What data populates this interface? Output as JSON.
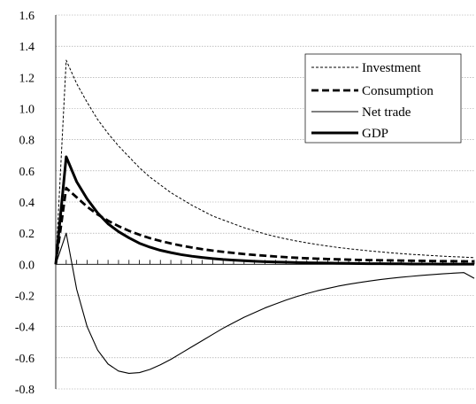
{
  "chart_data": {
    "type": "line",
    "title": "",
    "xlabel": "",
    "ylabel": "",
    "ylim": [
      -0.8,
      1.6
    ],
    "yticks": [
      "1.6",
      "1.4",
      "1.2",
      "1.0",
      "0.8",
      "0.6",
      "0.4",
      "0.2",
      "0.0",
      "-0.2",
      "-0.4",
      "-0.6",
      "-0.8"
    ],
    "x": [
      0,
      1,
      2,
      3,
      4,
      5,
      6,
      7,
      8,
      9,
      10,
      11,
      12,
      13,
      14,
      15,
      16,
      17,
      18,
      19,
      20,
      21,
      22,
      23,
      24,
      25,
      26,
      27,
      28,
      29,
      30,
      31,
      32,
      33,
      34,
      35,
      36,
      37,
      38,
      39,
      40
    ],
    "grid": "horizontal",
    "legend_position": "top-right",
    "series": [
      {
        "name": "Investment",
        "style": "dotted",
        "color": "#000000",
        "values": [
          0,
          1.31,
          1.16,
          1.04,
          0.93,
          0.84,
          0.76,
          0.69,
          0.62,
          0.56,
          0.51,
          0.46,
          0.42,
          0.38,
          0.345,
          0.31,
          0.285,
          0.26,
          0.235,
          0.215,
          0.195,
          0.178,
          0.163,
          0.15,
          0.138,
          0.127,
          0.117,
          0.108,
          0.1,
          0.093,
          0.086,
          0.08,
          0.074,
          0.069,
          0.064,
          0.06,
          0.056,
          0.052,
          0.049,
          0.046,
          0.043
        ]
      },
      {
        "name": "Consumption",
        "style": "dashed",
        "color": "#000000",
        "values": [
          0,
          0.49,
          0.43,
          0.37,
          0.32,
          0.28,
          0.245,
          0.215,
          0.19,
          0.168,
          0.15,
          0.134,
          0.12,
          0.108,
          0.097,
          0.088,
          0.08,
          0.073,
          0.066,
          0.06,
          0.055,
          0.05,
          0.046,
          0.042,
          0.039,
          0.036,
          0.034,
          0.032,
          0.03,
          0.028,
          0.027,
          0.026,
          0.025,
          0.024,
          0.023,
          0.022,
          0.021,
          0.02,
          0.02,
          0.019,
          0.019
        ]
      },
      {
        "name": "Net trade",
        "style": "thin",
        "color": "#000000",
        "values": [
          0,
          0.2,
          -0.16,
          -0.4,
          -0.55,
          -0.64,
          -0.685,
          -0.7,
          -0.695,
          -0.675,
          -0.645,
          -0.61,
          -0.57,
          -0.53,
          -0.49,
          -0.45,
          -0.41,
          -0.375,
          -0.34,
          -0.31,
          -0.28,
          -0.255,
          -0.23,
          -0.208,
          -0.188,
          -0.17,
          -0.155,
          -0.14,
          -0.128,
          -0.117,
          -0.107,
          -0.098,
          -0.09,
          -0.083,
          -0.077,
          -0.071,
          -0.066,
          -0.061,
          -0.057,
          -0.053,
          -0.09
        ]
      },
      {
        "name": "GDP",
        "style": "thick",
        "color": "#000000",
        "values": [
          0,
          0.69,
          0.53,
          0.42,
          0.33,
          0.26,
          0.21,
          0.17,
          0.135,
          0.11,
          0.09,
          0.075,
          0.062,
          0.052,
          0.044,
          0.037,
          0.031,
          0.027,
          0.023,
          0.02,
          0.017,
          0.015,
          0.013,
          0.011,
          0.01,
          0.009,
          0.008,
          0.007,
          0.006,
          0.005,
          0.004,
          0.004,
          0.003,
          0.003,
          0.002,
          0.002,
          0.002,
          0.001,
          0.001,
          0.001,
          0.001
        ]
      }
    ]
  }
}
